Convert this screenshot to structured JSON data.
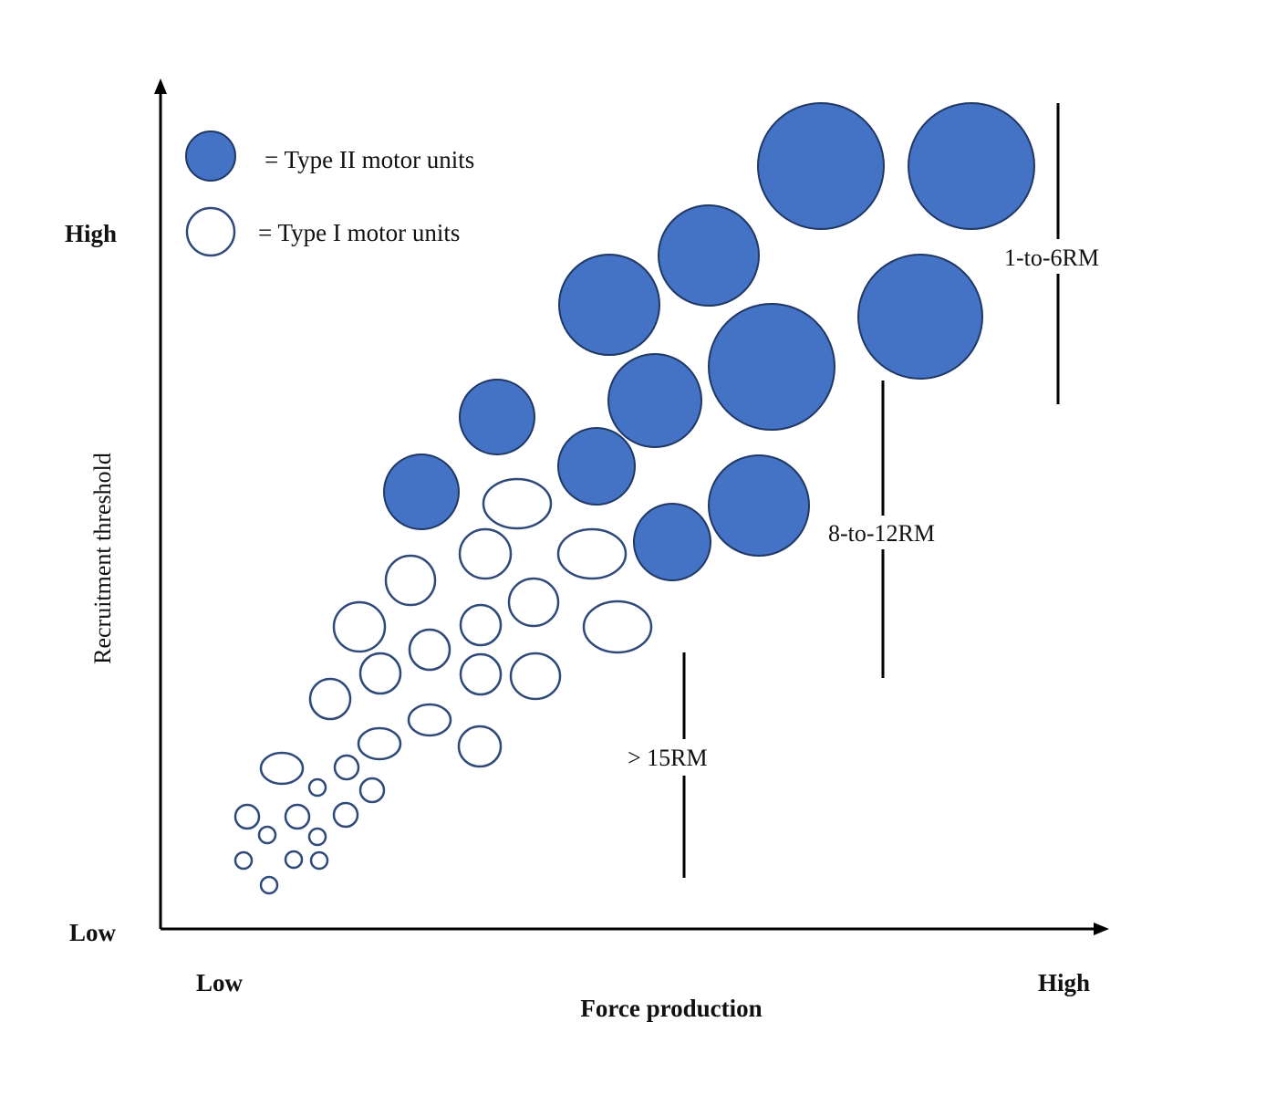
{
  "colors": {
    "type_ii_fill": "#4472c4",
    "type_ii_stroke": "#1f3864",
    "type_i_stroke": "#2f4a78",
    "axis": "#000000"
  },
  "legend": {
    "type_ii_label": "= Type II motor units",
    "type_i_label": "= Type I motor units"
  },
  "axes": {
    "y_label": "Recruitment threshold",
    "y_high": "High",
    "y_low": "Low",
    "x_label": "Force production",
    "x_low": "Low",
    "x_high": "High"
  },
  "ranges": {
    "heavy": "1-to-6RM",
    "moderate": "8-to-12RM",
    "light": "> 15RM"
  }
}
